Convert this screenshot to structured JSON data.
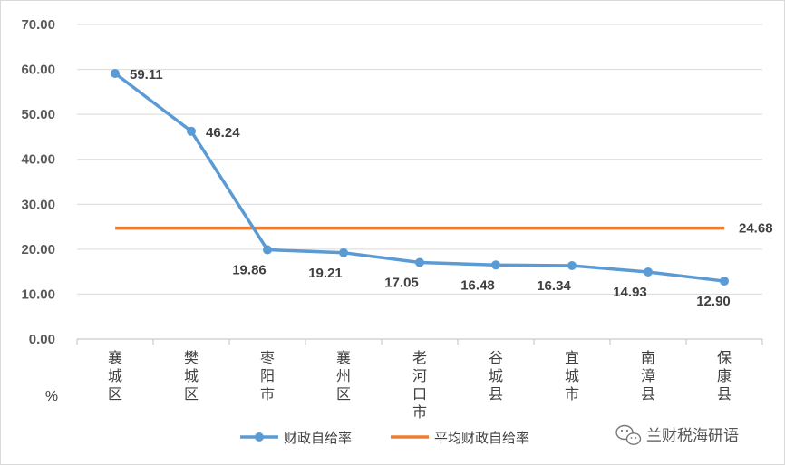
{
  "chart_data": {
    "type": "line",
    "unit_label": "%",
    "y_ticks": [
      "70.00",
      "60.00",
      "50.00",
      "40.00",
      "30.00",
      "20.00",
      "10.00",
      "0.00"
    ],
    "ylim": [
      0,
      70
    ],
    "grid": true,
    "categories": [
      "襄城区",
      "樊城区",
      "枣阳市",
      "襄州区",
      "老河口市",
      "谷城县",
      "宜城市",
      "南漳县",
      "保康县"
    ],
    "series": [
      {
        "name": "财政自给率",
        "color": "#5b9bd5",
        "values": [
          59.11,
          46.24,
          19.86,
          19.21,
          17.05,
          16.48,
          16.34,
          14.93,
          12.9
        ],
        "labels": [
          "59.11",
          "46.24",
          "19.86",
          "19.21",
          "17.05",
          "16.48",
          "16.34",
          "14.93",
          "12.90"
        ]
      },
      {
        "name": "平均财政自给率",
        "color": "#ed7d31",
        "value": 24.68,
        "label": "24.68"
      }
    ],
    "legend_position": "bottom"
  },
  "watermark": {
    "icon": "wechat-icon",
    "text": "兰财税海研语"
  }
}
